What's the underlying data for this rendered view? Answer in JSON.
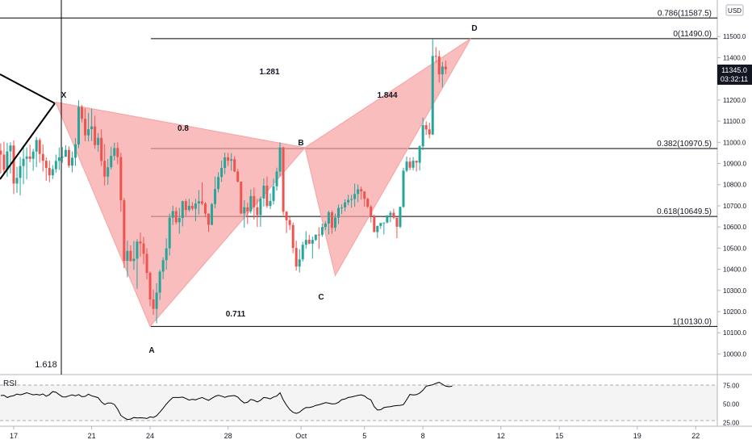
{
  "currency": "USD",
  "price_tag": {
    "value": "11345.0",
    "timer": "03:32:11"
  },
  "pattern_labels": {
    "X": "X",
    "A": "A",
    "B": "B",
    "C": "C",
    "D": "D"
  },
  "ratios": {
    "xb": "0.8",
    "ac": "0.711",
    "bd": "1.281",
    "xd_ext": "1.844",
    "left": "1.618"
  },
  "indicator_label": "RSI",
  "chart_data": [
    {
      "type": "candlestick",
      "title": "",
      "y_ticks": [
        10000,
        10100,
        10200,
        10300,
        10400,
        10500,
        10600,
        10700,
        10800,
        10900,
        11000,
        11100,
        11200,
        11300,
        11400,
        11500
      ],
      "y_tick_labels": [
        "10000.0",
        "10100.0",
        "10200.0",
        "10300.0",
        "10400.0",
        "10500.0",
        "10600.0",
        "10700.0",
        "10800.0",
        "10900.0",
        "11000.0",
        "11100.0",
        "11200.0",
        "11300.0",
        "11400.0",
        "11500.0"
      ],
      "ylim": [
        9975,
        11640
      ],
      "x_ticks": [
        "17",
        "21",
        "24",
        "28",
        "Oct",
        "5",
        "8",
        "12",
        "15",
        "19",
        "22"
      ],
      "x_tick_days": [
        0,
        4,
        7,
        11,
        14.75,
        18,
        21,
        25,
        28,
        32,
        35
      ],
      "fib_levels": [
        {
          "label": "0.786(11587.5)",
          "price": 11587.5
        },
        {
          "label": "0(11490.0)",
          "price": 11490.0
        },
        {
          "label": "0.382(10970.5)",
          "price": 10970.5
        },
        {
          "label": "0.618(10649.5)",
          "price": 10649.5
        },
        {
          "label": "1(10130.0)",
          "price": 10130.0
        }
      ],
      "pattern": {
        "X": [
          2.15,
          11190
        ],
        "A": [
          7.0,
          10130
        ],
        "B": [
          14.95,
          10975
        ],
        "C": [
          16.5,
          10370
        ],
        "D": [
          23.45,
          11490
        ]
      },
      "candles": [
        [
          10961,
          10995,
          10853,
          10942
        ],
        [
          10942,
          11003,
          10853,
          10870
        ],
        [
          10870,
          10998,
          10837,
          10957
        ],
        [
          10957,
          11000,
          10853,
          10985
        ],
        [
          10985,
          11009,
          10755,
          10805
        ],
        [
          10805,
          10884,
          10761,
          10832
        ],
        [
          10832,
          10931,
          10749,
          10888
        ],
        [
          10888,
          10985,
          10802,
          10922
        ],
        [
          10922,
          10976,
          10825,
          10933
        ],
        [
          10933,
          10989,
          10906,
          10922
        ],
        [
          10922,
          10969,
          10866,
          10956
        ],
        [
          10956,
          11025,
          10883,
          11011
        ],
        [
          11011,
          11020,
          10904,
          10945
        ],
        [
          10945,
          10990,
          10862,
          10913
        ],
        [
          10913,
          10929,
          10818,
          10879
        ],
        [
          10879,
          10914,
          10812,
          10844
        ],
        [
          10844,
          10892,
          10827,
          10873
        ],
        [
          10873,
          10942,
          10856,
          10912
        ],
        [
          10912,
          10975,
          10869,
          10929
        ],
        [
          10929,
          10978,
          10904,
          10932
        ],
        [
          10932,
          10986,
          10931,
          10964
        ],
        [
          10964,
          10981,
          10880,
          10890
        ],
        [
          10890,
          10957,
          10858,
          10927
        ],
        [
          10927,
          11019,
          10889,
          10990
        ],
        [
          10990,
          11198,
          10973,
          11167
        ],
        [
          11167,
          11176,
          11094,
          11111
        ],
        [
          11111,
          11160,
          11005,
          11033
        ],
        [
          11033,
          11139,
          11004,
          11062
        ],
        [
          11062,
          11159,
          11005,
          11075
        ],
        [
          11075,
          11126,
          10969,
          10987
        ],
        [
          10987,
          11044,
          10955,
          11021
        ],
        [
          11021,
          11061,
          10888,
          10912
        ],
        [
          10912,
          10991,
          10796,
          10838
        ],
        [
          10838,
          10921,
          10799,
          10882
        ],
        [
          10882,
          10979,
          10872,
          10936
        ],
        [
          10936,
          10998,
          10914,
          10973
        ],
        [
          10973,
          11000,
          10896,
          10930
        ],
        [
          10930,
          10951,
          10672,
          10726
        ],
        [
          10726,
          10736,
          10406,
          10440
        ],
        [
          10440,
          10535,
          10362,
          10487
        ],
        [
          10487,
          10513,
          10437,
          10439
        ],
        [
          10439,
          10534,
          10398,
          10450
        ],
        [
          10450,
          10542,
          10308,
          10531
        ],
        [
          10531,
          10573,
          10460,
          10522
        ],
        [
          10522,
          10553,
          10424,
          10473
        ],
        [
          10473,
          10500,
          10352,
          10383
        ],
        [
          10383,
          10389,
          10225,
          10258
        ],
        [
          10258,
          10305,
          10185,
          10213
        ],
        [
          10213,
          10334,
          10145,
          10290
        ],
        [
          10290,
          10398,
          10255,
          10389
        ],
        [
          10389,
          10457,
          10353,
          10443
        ],
        [
          10443,
          10546,
          10398,
          10499
        ],
        [
          10499,
          10663,
          10465,
          10644
        ],
        [
          10644,
          10700,
          10609,
          10675
        ],
        [
          10675,
          10693,
          10612,
          10622
        ],
        [
          10622,
          10690,
          10568,
          10642
        ],
        [
          10642,
          10724,
          10603,
          10722
        ],
        [
          10722,
          10732,
          10653,
          10680
        ],
        [
          10680,
          10733,
          10671,
          10700
        ],
        [
          10700,
          10718,
          10677,
          10686
        ],
        [
          10686,
          10733,
          10627,
          10711
        ],
        [
          10711,
          10774,
          10659,
          10721
        ],
        [
          10721,
          10811,
          10702,
          10711
        ],
        [
          10711,
          10718,
          10646,
          10663
        ],
        [
          10663,
          10664,
          10577,
          10610
        ],
        [
          10610,
          10713,
          10608,
          10708
        ],
        [
          10708,
          10838,
          10688,
          10779
        ],
        [
          10779,
          10858,
          10763,
          10836
        ],
        [
          10836,
          10914,
          10813,
          10879
        ],
        [
          10879,
          10951,
          10850,
          10929
        ],
        [
          10929,
          10950,
          10888,
          10913
        ],
        [
          10913,
          10949,
          10866,
          10920
        ],
        [
          10920,
          10934,
          10859,
          10862
        ],
        [
          10862,
          10874,
          10810,
          10814
        ],
        [
          10814,
          10811,
          10660,
          10664
        ],
        [
          10664,
          10727,
          10597,
          10693
        ],
        [
          10693,
          10715,
          10614,
          10674
        ],
        [
          10674,
          10778,
          10663,
          10746
        ],
        [
          10746,
          10786,
          10635,
          10693
        ],
        [
          10693,
          10732,
          10600,
          10656
        ],
        [
          10656,
          10743,
          10601,
          10734
        ],
        [
          10734,
          10829,
          10697,
          10795
        ],
        [
          10795,
          10838,
          10690,
          10699
        ],
        [
          10699,
          10759,
          10685,
          10723
        ],
        [
          10723,
          10828,
          10706,
          10792
        ],
        [
          10792,
          10880,
          10772,
          10862
        ],
        [
          10862,
          11000,
          10839,
          10976
        ],
        [
          10976,
          10979,
          10655,
          10672
        ],
        [
          10672,
          10675,
          10571,
          10632
        ],
        [
          10632,
          10647,
          10586,
          10609
        ],
        [
          10609,
          10621,
          10476,
          10501
        ],
        [
          10501,
          10535,
          10394,
          10413
        ],
        [
          10413,
          10495,
          10385,
          10447
        ],
        [
          10447,
          10530,
          10437,
          10516
        ],
        [
          10516,
          10580,
          10498,
          10539
        ],
        [
          10539,
          10563,
          10519,
          10521
        ],
        [
          10521,
          10555,
          10450,
          10539
        ],
        [
          10539,
          10564,
          10534,
          10564
        ],
        [
          10564,
          10599,
          10496,
          10563
        ],
        [
          10563,
          10616,
          10554,
          10600
        ],
        [
          10600,
          10626,
          10586,
          10616
        ],
        [
          10616,
          10677,
          10565,
          10669
        ],
        [
          10669,
          10677,
          10568,
          10596
        ],
        [
          10596,
          10663,
          10580,
          10644
        ],
        [
          10644,
          10706,
          10614,
          10690
        ],
        [
          10690,
          10707,
          10661,
          10692
        ],
        [
          10692,
          10731,
          10674,
          10716
        ],
        [
          10716,
          10752,
          10703,
          10728
        ],
        [
          10728,
          10752,
          10691,
          10732
        ],
        [
          10732,
          10805,
          10695,
          10756
        ],
        [
          10756,
          10801,
          10717,
          10778
        ],
        [
          10778,
          10791,
          10729,
          10768
        ],
        [
          10768,
          10768,
          10696,
          10733
        ],
        [
          10733,
          10738,
          10689,
          10696
        ],
        [
          10696,
          10704,
          10621,
          10650
        ],
        [
          10650,
          10658,
          10575,
          10576
        ],
        [
          10576,
          10606,
          10548,
          10605
        ],
        [
          10605,
          10617,
          10591,
          10619
        ],
        [
          10619,
          10620,
          10565,
          10621
        ],
        [
          10621,
          10648,
          10617,
          10655
        ],
        [
          10655,
          10676,
          10623,
          10667
        ],
        [
          10667,
          10686,
          10637,
          10644
        ],
        [
          10644,
          10638,
          10547,
          10601
        ],
        [
          10601,
          10697,
          10594,
          10695
        ],
        [
          10695,
          10880,
          10690,
          10866
        ],
        [
          10866,
          10933,
          10859,
          10909
        ],
        [
          10909,
          10928,
          10868,
          10880
        ],
        [
          10880,
          10930,
          10868,
          10913
        ],
        [
          10913,
          10911,
          10862,
          10904
        ],
        [
          10904,
          10986,
          10867,
          10981
        ],
        [
          10981,
          11117,
          10963,
          11081
        ],
        [
          11081,
          11099,
          11035,
          11061
        ],
        [
          11061,
          11093,
          11019,
          11037
        ],
        [
          11037,
          11489,
          11034,
          11408
        ],
        [
          11408,
          11450,
          11377,
          11406
        ],
        [
          11406,
          11433,
          11282,
          11321
        ],
        [
          11321,
          11379,
          11259,
          11358
        ],
        [
          11358,
          11386,
          11322,
          11345
        ]
      ],
      "rsi": {
        "label": "RSI",
        "levels": [
          70,
          30
        ],
        "ticks": [
          75.0,
          50.0,
          25.0
        ],
        "tick_labels": [
          "75.00",
          "50.00",
          "25.00"
        ],
        "ylim": [
          22,
          82
        ],
        "values": [
          61.3,
          61.7,
          58.7,
          60.3,
          61.2,
          63.4,
          62.3,
          63.5,
          65.1,
          63.7,
          62.2,
          62.9,
          61.9,
          63.5,
          60.4,
          62.6,
          66.6,
          65.8,
          62.6,
          59.5,
          59.4,
          60.9,
          62.1,
          60.9,
          62.6,
          59.7,
          60.2,
          63.1,
          60.9,
          59.8,
          58.4,
          52.7,
          49.2,
          51.2,
          51.2,
          49.2,
          42.8,
          34.4,
          31.3,
          28.9,
          29.5,
          31.6,
          31.0,
          31.3,
          31.0,
          30.3,
          32.5,
          31.7,
          34.0,
          38.8,
          44.1,
          49.8,
          54.5,
          58.7,
          58.6,
          58.6,
          59.2,
          57.4,
          55.2,
          56.2,
          55.5,
          57.2,
          58.6,
          56.6,
          54.8,
          57.6,
          60.2,
          61.6,
          60.5,
          58.9,
          60.3,
          60.8,
          61.3,
          59.2,
          54.5,
          51.2,
          52.2,
          56.0,
          54.8,
          52.6,
          55.0,
          58.7,
          58.1,
          56.8,
          59.3,
          60.6,
          65.1,
          55.4,
          48.3,
          42.4,
          38.7,
          37.2,
          38.8,
          42.4,
          45.2,
          45.0,
          46.1,
          48.0,
          48.8,
          50.3,
          51.7,
          51.0,
          49.9,
          50.2,
          52.1,
          55.7,
          56.6,
          58.6,
          59.4,
          60.4,
          61.5,
          62.3,
          60.7,
          57.3,
          55.4,
          46.3,
          41.8,
          42.2,
          45.0,
          45.9,
          46.2,
          47.2,
          47.8,
          48.1,
          49.1,
          55.7,
          62.8,
          62.0,
          62.5,
          64.7,
          68.5,
          73.9,
          74.9,
          75.8,
          77.8,
          79.2,
          76.5,
          74.0,
          73.3,
          73.9
        ]
      }
    }
  ]
}
